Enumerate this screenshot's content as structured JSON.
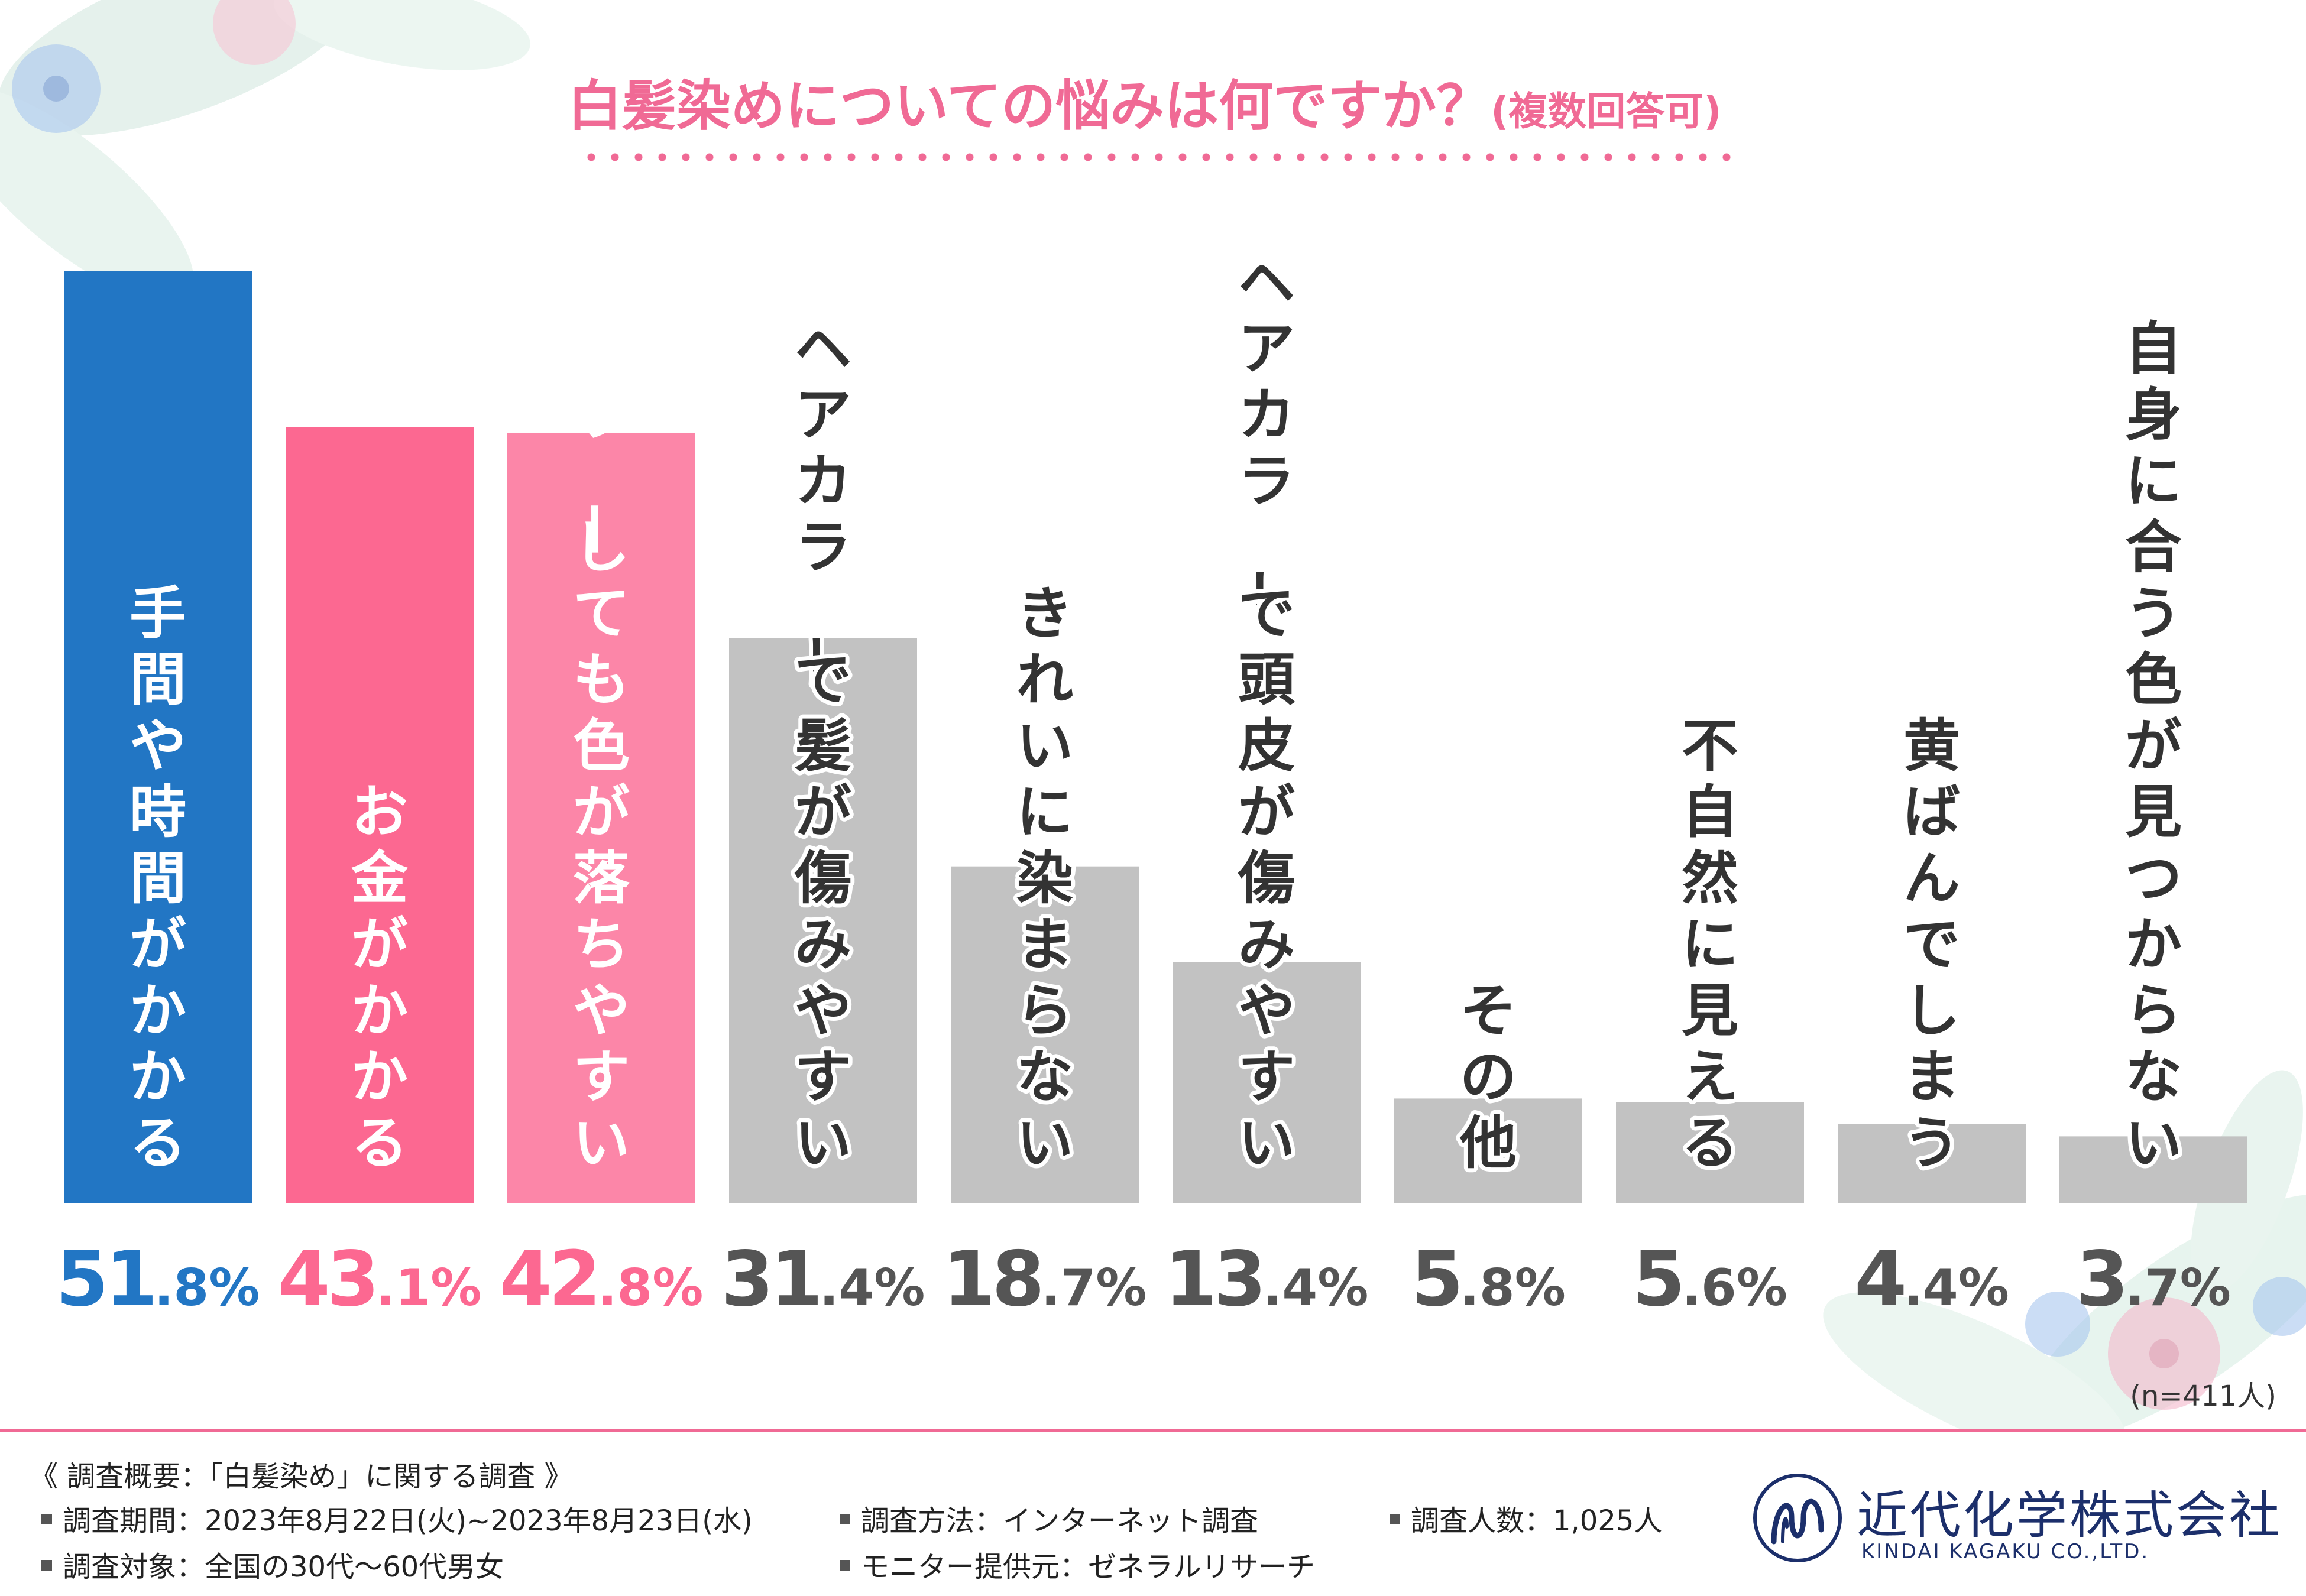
{
  "title": {
    "main": "白髪染めについての悩みは何ですか？",
    "sub": "(複数回答可)"
  },
  "chart_data": {
    "type": "bar",
    "title": "白髪染めについての悩みは何ですか？(複数回答可)",
    "unit": "%",
    "ylim": [
      0,
      51.8
    ],
    "categories": [
      "手間や時間がかかる",
      "お金がかかる",
      "ヘアカラーしても色が落ちやすい",
      "ヘアカラーで髪が傷みやすい",
      "きれいに染まらない",
      "ヘアカラーで頭皮が傷みやすい",
      "その他",
      "不自然に見える",
      "黄ばんでしまう",
      "自身に合う色が見つからない"
    ],
    "values": [
      51.8,
      43.1,
      42.8,
      31.4,
      18.7,
      13.4,
      5.8,
      5.6,
      4.4,
      3.7
    ],
    "value_labels": [
      [
        "51",
        ".8%"
      ],
      [
        "43",
        ".1%"
      ],
      [
        "42",
        ".8%"
      ],
      [
        "31",
        ".4%"
      ],
      [
        "18",
        ".7%"
      ],
      [
        "13",
        ".4%"
      ],
      [
        "5",
        ".8%"
      ],
      [
        "5",
        ".6%"
      ],
      [
        "4",
        ".4%"
      ],
      [
        "3",
        ".7%"
      ]
    ],
    "bar_colors": [
      "#2276c4",
      "#fc6891",
      "#fc86a8",
      "#c2c2c2",
      "#c2c2c2",
      "#c2c2c2",
      "#c2c2c2",
      "#c2c2c2",
      "#c2c2c2",
      "#c2c2c2"
    ],
    "label_colors": [
      "#ffffff",
      "#ffffff",
      "#ffffff",
      "#333333",
      "#333333",
      "#333333",
      "#333333",
      "#333333",
      "#333333",
      "#333333"
    ],
    "pct_colors": [
      "#2276c4",
      "#fc6891",
      "#fc6891",
      "#555555",
      "#555555",
      "#555555",
      "#555555",
      "#555555",
      "#555555",
      "#555555"
    ]
  },
  "sample_note": "(n=411人)",
  "footer": {
    "heading": "《 調査概要：「白髪染め」に関する調査 》",
    "items": [
      "調査期間：2023年8月22日(火)~2023年8月23日(水)",
      "調査方法：インターネット調査",
      "調査人数：1,025人",
      "調査対象：全国の30代～60代男女",
      "モニター提供元：ゼネラルリサーチ"
    ]
  },
  "company": {
    "name": "近代化学株式会社",
    "name_en": "KINDAI KAGAKU CO.,LTD."
  },
  "colors": {
    "accent": "#f06a95",
    "blue": "#2276c4",
    "pink": "#fc6891",
    "gray": "#c2c2c2",
    "navy": "#1c2f6b"
  }
}
